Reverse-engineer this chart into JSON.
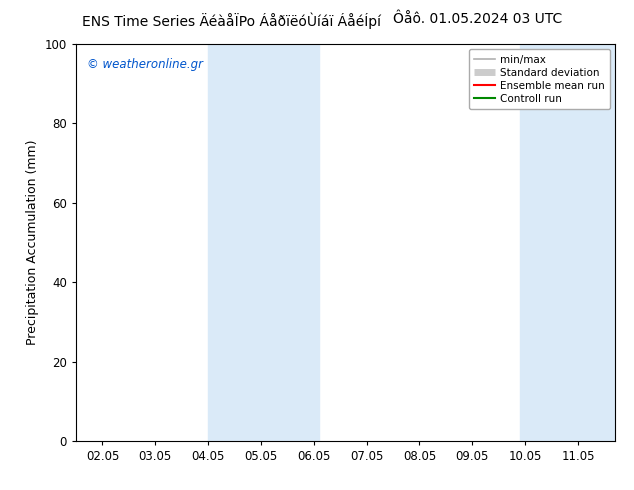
{
  "title_left": "ENS Time Series ÄéàåÏPo ÁåðïëóÙíáï ÁåéÍpí",
  "title_right": "Ôåô. 01.05.2024 03 UTC",
  "ylabel": "Precipitation Accumulation (mm)",
  "ylim": [
    0,
    100
  ],
  "yticks": [
    0,
    20,
    40,
    60,
    80,
    100
  ],
  "xtick_labels": [
    "02.05",
    "03.05",
    "04.05",
    "05.05",
    "06.05",
    "07.05",
    "08.05",
    "09.05",
    "10.05",
    "11.05"
  ],
  "xtick_values": [
    0,
    1,
    2,
    3,
    4,
    5,
    6,
    7,
    8,
    9
  ],
  "xlim": [
    -0.5,
    9.7
  ],
  "watermark": "© weatheronline.gr",
  "watermark_color": "#0055cc",
  "bg_color": "#ffffff",
  "plot_bg_color": "#ffffff",
  "shaded_regions": [
    {
      "xstart": 2.0,
      "xend": 4.1,
      "color": "#daeaf8"
    },
    {
      "xstart": 7.9,
      "xend": 9.7,
      "color": "#daeaf8"
    }
  ],
  "legend_items": [
    {
      "label": "min/max",
      "color": "#b0b0b0",
      "lw": 1.2
    },
    {
      "label": "Standard deviation",
      "color": "#cccccc",
      "lw": 5
    },
    {
      "label": "Ensemble mean run",
      "color": "#ff0000",
      "lw": 1.5
    },
    {
      "label": "Controll run",
      "color": "#008800",
      "lw": 1.5
    }
  ],
  "title_fontsize": 10,
  "tick_fontsize": 8.5,
  "label_fontsize": 9,
  "legend_fontsize": 7.5
}
